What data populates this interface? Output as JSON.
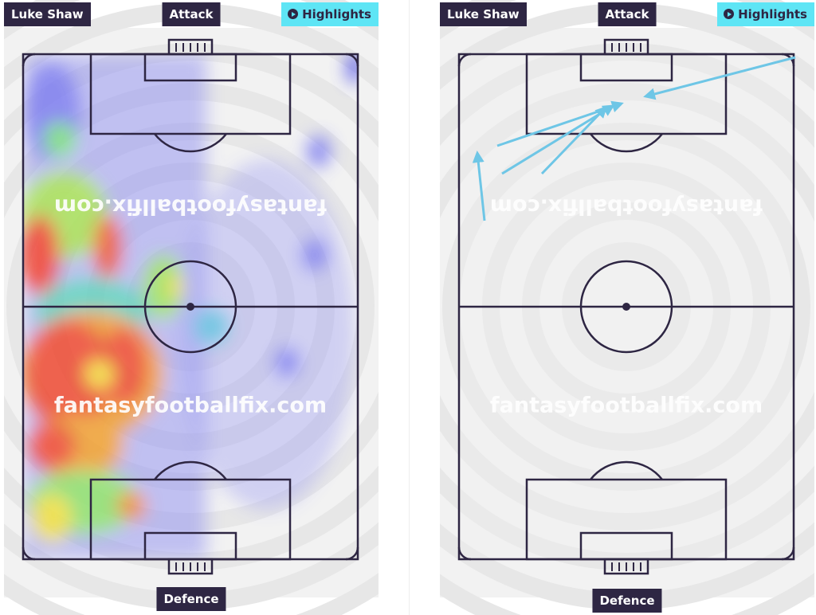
{
  "panels": [
    {
      "player": "Luke Shaw",
      "top_label": "Attack",
      "button": "Highlights",
      "bottom_label": "Defence",
      "watermark": "fantasyfootballfix.com"
    },
    {
      "player": "Luke Shaw",
      "top_label": "Attack",
      "button": "Highlights",
      "bottom_label": "Defence",
      "watermark": "fantasyfootballfix.com"
    }
  ]
}
